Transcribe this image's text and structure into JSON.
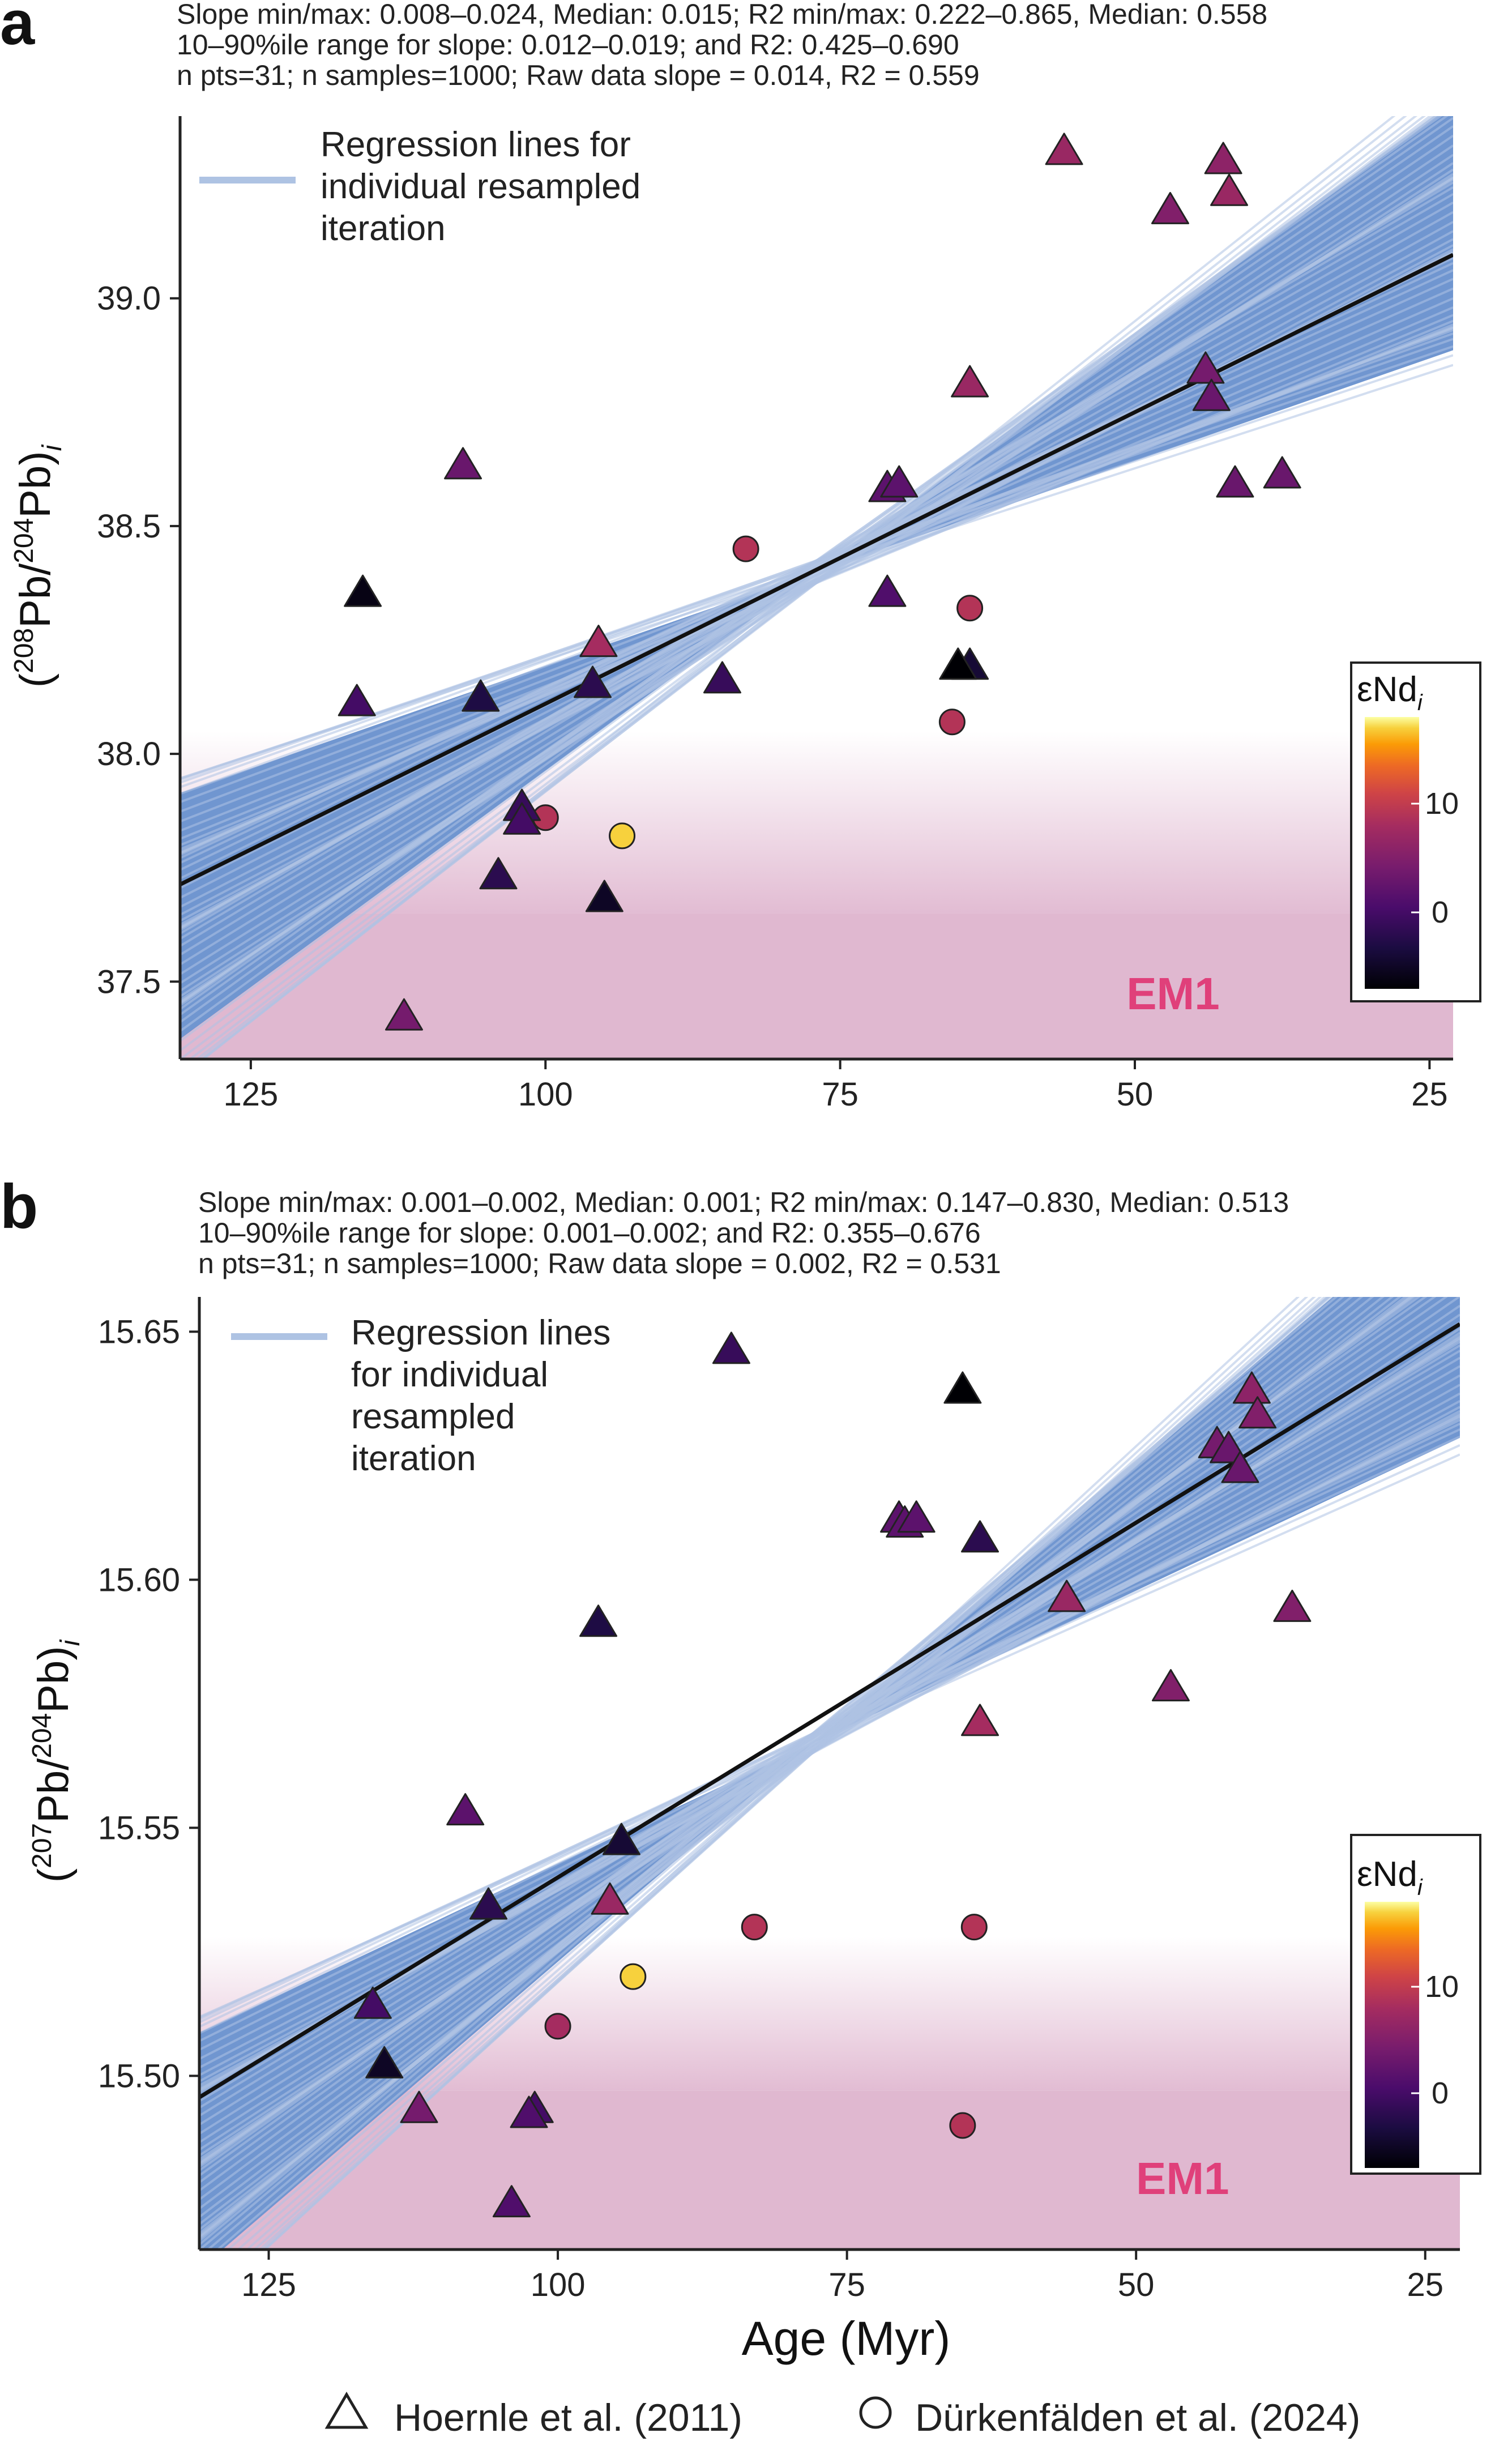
{
  "figure": {
    "xlabel": "Age (Myr)",
    "legend_bottom": [
      {
        "label": "Hoernle et al. (2011)",
        "marker": "triangle"
      },
      {
        "label": "Dürkenfälden et al. (2024)",
        "marker": "circle"
      }
    ]
  },
  "colors": {
    "band": "#7096d0",
    "band_line": "#aec3e3",
    "fit_line": "#111111",
    "em1": "#e0b8d0",
    "em1_label": "#e0407a",
    "axis": "#222222"
  },
  "chart_data": [
    {
      "panel_label": "a",
      "type": "scatter",
      "stats": [
        "Slope min/max: 0.008–0.024, Median: 0.015; R2 min/max: 0.222–0.865, Median: 0.558",
        "10–90%ile range for slope: 0.012–0.019; and R2: 0.425–0.690",
        "n pts=31; n samples=1000; Raw data slope = 0.014, R2 = 0.559"
      ],
      "ylabel_main": "Pb/",
      "ylabel_sup1": "208",
      "ylabel_sup2": "204",
      "legend_label": [
        "Regression lines for",
        "individual resampled",
        "iteration"
      ],
      "x_reversed": true,
      "xlim": [
        131,
        23
      ],
      "ylim": [
        37.33,
        39.4
      ],
      "xticks": [
        125,
        100,
        75,
        50,
        25
      ],
      "yticks": [
        37.5,
        38.0,
        38.5,
        39.0
      ],
      "ytick_labels": [
        "37.5",
        "38.0",
        "38.5",
        "39.0"
      ],
      "fit": {
        "slope": 0.0128,
        "intercept": 39.39
      },
      "band": {
        "slope_min": 0.009,
        "slope_max": 0.019,
        "pivot_x": 77,
        "pivot_y": 38.4
      },
      "em1": {
        "label": "EM1",
        "y_from": 37.33,
        "y_to": 37.65,
        "fade_to": 38.05
      },
      "colorbar": {
        "title": "εNd",
        "title_sub": "i",
        "ticks": [
          10,
          0
        ],
        "tick_labels": [
          "10",
          "0"
        ],
        "min": -7,
        "max": 18
      },
      "triangles": [
        {
          "x": 115.5,
          "y": 38.35,
          "e": -6
        },
        {
          "x": 116,
          "y": 38.11,
          "e": 0
        },
        {
          "x": 107,
          "y": 38.63,
          "e": 3
        },
        {
          "x": 105.5,
          "y": 38.12,
          "e": -3
        },
        {
          "x": 102,
          "y": 37.88,
          "e": -1
        },
        {
          "x": 102,
          "y": 37.85,
          "e": 0
        },
        {
          "x": 104,
          "y": 37.73,
          "e": -2
        },
        {
          "x": 95,
          "y": 37.68,
          "e": -5
        },
        {
          "x": 96,
          "y": 38.15,
          "e": -2
        },
        {
          "x": 95.5,
          "y": 38.24,
          "e": 8
        },
        {
          "x": 112,
          "y": 37.42,
          "e": 4
        },
        {
          "x": 85,
          "y": 38.16,
          "e": -1
        },
        {
          "x": 71,
          "y": 38.58,
          "e": 2
        },
        {
          "x": 70,
          "y": 38.59,
          "e": 2
        },
        {
          "x": 71,
          "y": 38.35,
          "e": 1
        },
        {
          "x": 64,
          "y": 38.81,
          "e": 7
        },
        {
          "x": 64,
          "y": 38.19,
          "e": -4
        },
        {
          "x": 65,
          "y": 38.19,
          "e": -7
        },
        {
          "x": 56,
          "y": 39.32,
          "e": 7
        },
        {
          "x": 47,
          "y": 39.19,
          "e": 5
        },
        {
          "x": 42.5,
          "y": 39.3,
          "e": 6
        },
        {
          "x": 42,
          "y": 39.23,
          "e": 7
        },
        {
          "x": 44,
          "y": 38.84,
          "e": 4
        },
        {
          "x": 43.5,
          "y": 38.78,
          "e": 3
        },
        {
          "x": 41.5,
          "y": 38.59,
          "e": 3
        },
        {
          "x": 37.5,
          "y": 38.61,
          "e": 3
        }
      ],
      "circles": [
        {
          "x": 100,
          "y": 37.86,
          "e": 9
        },
        {
          "x": 93.5,
          "y": 37.82,
          "e": 17
        },
        {
          "x": 83,
          "y": 38.45,
          "e": 9
        },
        {
          "x": 64,
          "y": 38.32,
          "e": 9
        },
        {
          "x": 65.5,
          "y": 38.07,
          "e": 9
        }
      ]
    },
    {
      "panel_label": "b",
      "type": "scatter",
      "stats": [
        "Slope min/max: 0.001–0.002, Median: 0.001; R2 min/max: 0.147–0.830, Median: 0.513",
        "10–90%ile range for slope: 0.001–0.002; and R2: 0.355–0.676",
        "n pts=31; n samples=1000; Raw data slope = 0.002, R2 = 0.531"
      ],
      "ylabel_main": "Pb/",
      "ylabel_sup1": "207",
      "ylabel_sup2": "204",
      "legend_label": [
        "Regression lines",
        "for individual",
        "resampled",
        "iteration"
      ],
      "x_reversed": true,
      "xlim": [
        131,
        22
      ],
      "ylim": [
        15.465,
        15.657
      ],
      "xticks": [
        125,
        100,
        75,
        50,
        25
      ],
      "yticks": [
        15.5,
        15.55,
        15.6,
        15.65
      ],
      "ytick_labels": [
        "15.50",
        "15.55",
        "15.60",
        "15.65"
      ],
      "fit": {
        "slope": 0.00143,
        "intercept": 15.683
      },
      "band": {
        "slope_min": 0.0011,
        "slope_max": 0.002,
        "pivot_x": 78,
        "pivot_y": 15.567
      },
      "em1": {
        "label": "EM1",
        "y_from": 15.465,
        "y_to": 15.497,
        "fade_to": 15.528
      },
      "colorbar": {
        "title": "εNd",
        "title_sub": "i",
        "ticks": [
          10,
          0
        ],
        "tick_labels": [
          "10",
          "0"
        ],
        "min": -7,
        "max": 18
      },
      "triangles": [
        {
          "x": 116,
          "y": 15.514,
          "e": 0
        },
        {
          "x": 115,
          "y": 15.502,
          "e": -5
        },
        {
          "x": 112,
          "y": 15.493,
          "e": 4
        },
        {
          "x": 108,
          "y": 15.553,
          "e": 2
        },
        {
          "x": 106,
          "y": 15.534,
          "e": -2
        },
        {
          "x": 102,
          "y": 15.493,
          "e": 0
        },
        {
          "x": 102.5,
          "y": 15.492,
          "e": 1
        },
        {
          "x": 104,
          "y": 15.474,
          "e": 1
        },
        {
          "x": 96.5,
          "y": 15.591,
          "e": -3
        },
        {
          "x": 94.5,
          "y": 15.547,
          "e": -4
        },
        {
          "x": 95.5,
          "y": 15.535,
          "e": 7
        },
        {
          "x": 85,
          "y": 15.646,
          "e": -1
        },
        {
          "x": 70.5,
          "y": 15.612,
          "e": 2
        },
        {
          "x": 70,
          "y": 15.611,
          "e": 2
        },
        {
          "x": 69,
          "y": 15.612,
          "e": 2
        },
        {
          "x": 65,
          "y": 15.638,
          "e": -7
        },
        {
          "x": 63.5,
          "y": 15.608,
          "e": -2
        },
        {
          "x": 63.5,
          "y": 15.571,
          "e": 8
        },
        {
          "x": 56,
          "y": 15.596,
          "e": 7
        },
        {
          "x": 47,
          "y": 15.578,
          "e": 5
        },
        {
          "x": 43,
          "y": 15.627,
          "e": 4
        },
        {
          "x": 42,
          "y": 15.626,
          "e": 3
        },
        {
          "x": 41,
          "y": 15.622,
          "e": 3
        },
        {
          "x": 40,
          "y": 15.638,
          "e": 6
        },
        {
          "x": 39.5,
          "y": 15.633,
          "e": 5
        },
        {
          "x": 36.5,
          "y": 15.594,
          "e": 5
        }
      ],
      "circles": [
        {
          "x": 100,
          "y": 15.51,
          "e": 8
        },
        {
          "x": 93.5,
          "y": 15.52,
          "e": 17
        },
        {
          "x": 83,
          "y": 15.53,
          "e": 9
        },
        {
          "x": 64,
          "y": 15.53,
          "e": 9
        },
        {
          "x": 65,
          "y": 15.49,
          "e": 9
        }
      ]
    }
  ]
}
